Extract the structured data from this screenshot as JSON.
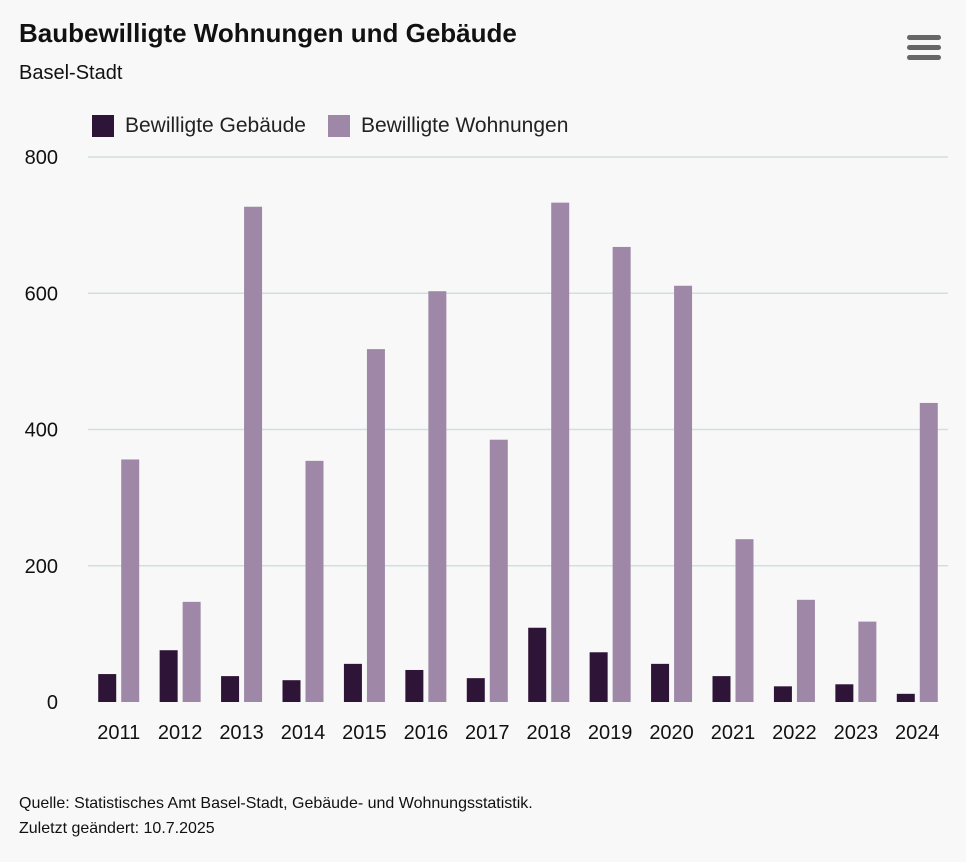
{
  "header": {
    "title": "Baubewilligte Wohnungen und Gebäude",
    "subtitle": "Basel-Stadt",
    "menu_icon": "hamburger-menu-icon"
  },
  "footer": {
    "source": "Quelle: Statistisches Amt Basel-Stadt, Gebäude- und Wohnungsstatistik.",
    "updated": "Zuletzt geändert: 10.7.2025"
  },
  "colors": {
    "buildings": "#2e1437",
    "apartments": "#9f87a8",
    "grid": "#cfe0df",
    "axis_text": "#111111"
  },
  "chart_data": {
    "type": "bar",
    "title": "Baubewilligte Wohnungen und Gebäude",
    "subtitle": "Basel-Stadt",
    "xlabel": "",
    "ylabel": "",
    "ylim": [
      0,
      800
    ],
    "yticks": [
      0,
      200,
      400,
      600,
      800
    ],
    "grid": true,
    "legend_position": "top-left",
    "categories": [
      "2011",
      "2012",
      "2013",
      "2014",
      "2015",
      "2016",
      "2017",
      "2018",
      "2019",
      "2020",
      "2021",
      "2022",
      "2023",
      "2024"
    ],
    "series": [
      {
        "name": "Bewilligte Gebäude",
        "color": "#2e1437",
        "values": [
          41,
          76,
          38,
          32,
          56,
          47,
          35,
          109,
          73,
          56,
          38,
          23,
          26,
          12
        ]
      },
      {
        "name": "Bewilligte Wohnungen",
        "color": "#9f87a8",
        "values": [
          356,
          147,
          727,
          354,
          518,
          603,
          385,
          733,
          668,
          611,
          239,
          150,
          118,
          439
        ]
      }
    ]
  }
}
